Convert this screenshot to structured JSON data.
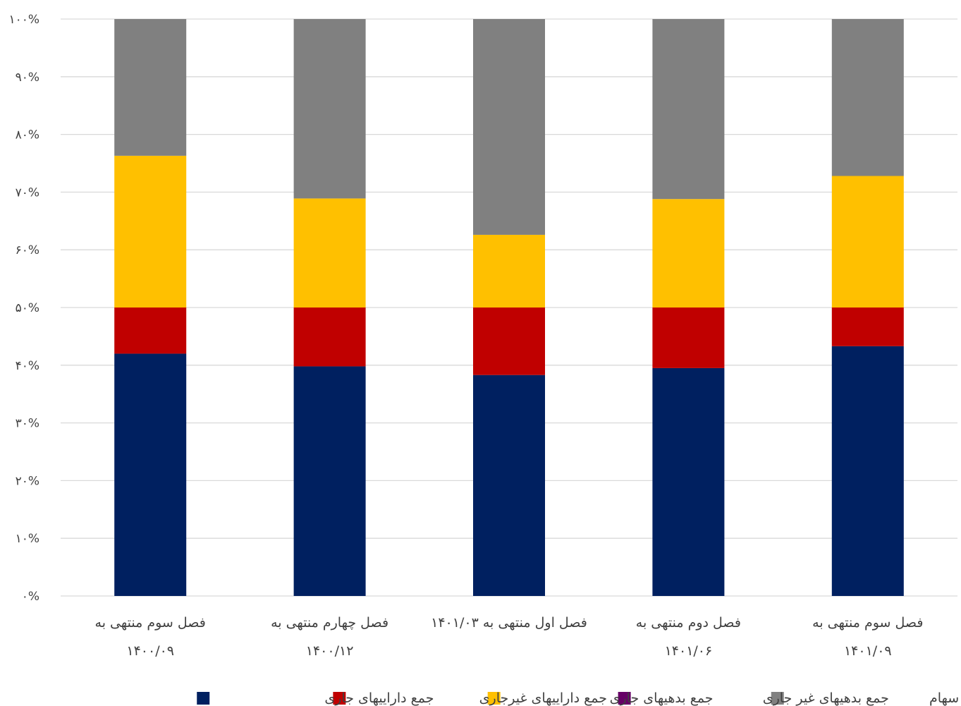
{
  "chart_data": {
    "type": "bar",
    "stacked": true,
    "percent_stacked": true,
    "ylim": [
      0,
      100
    ],
    "y_ticks": [
      "۰%",
      "۱۰%",
      "۲۰%",
      "۳۰%",
      "۴۰%",
      "۵۰%",
      "۶۰%",
      "۷۰%",
      "۸۰%",
      "۹۰%",
      "۱۰۰%"
    ],
    "grid": true,
    "legend_position": "bottom",
    "categories": [
      {
        "line1": "فصل سوم منتهی به",
        "line2": "۱۴۰۰/۰۹"
      },
      {
        "line1": "فصل چهارم منتهی به",
        "line2": "۱۴۰۰/۱۲"
      },
      {
        "line1": "فصل اول منتهی به ۱۴۰۱/۰۳",
        "line2": ""
      },
      {
        "line1": "فصل دوم منتهی به",
        "line2": "۱۴۰۱/۰۶"
      },
      {
        "line1": "فصل سوم منتهی به",
        "line2": "۱۴۰۱/۰۹"
      }
    ],
    "series": [
      {
        "name": "جمع داراییهای جاری",
        "color": "#002060",
        "values": [
          42.0,
          39.8,
          38.3,
          39.5,
          43.3
        ]
      },
      {
        "name": "جمع داراییهای غیرجاری",
        "color": "#C00000",
        "values": [
          8.0,
          10.2,
          11.7,
          10.5,
          6.7
        ]
      },
      {
        "name": "جمع بدهیهای جاری",
        "color": "#FFC000",
        "values": [
          26.3,
          18.9,
          12.6,
          18.8,
          22.8
        ]
      },
      {
        "name": "جمع بدهیهای غیر جاری",
        "color": "#660066",
        "values": [
          0,
          0,
          0,
          0,
          0
        ]
      },
      {
        "name": "جمع حقوق صاحبان سهام",
        "color": "#808080",
        "values": [
          23.7,
          31.1,
          37.4,
          31.2,
          27.2
        ]
      }
    ]
  }
}
